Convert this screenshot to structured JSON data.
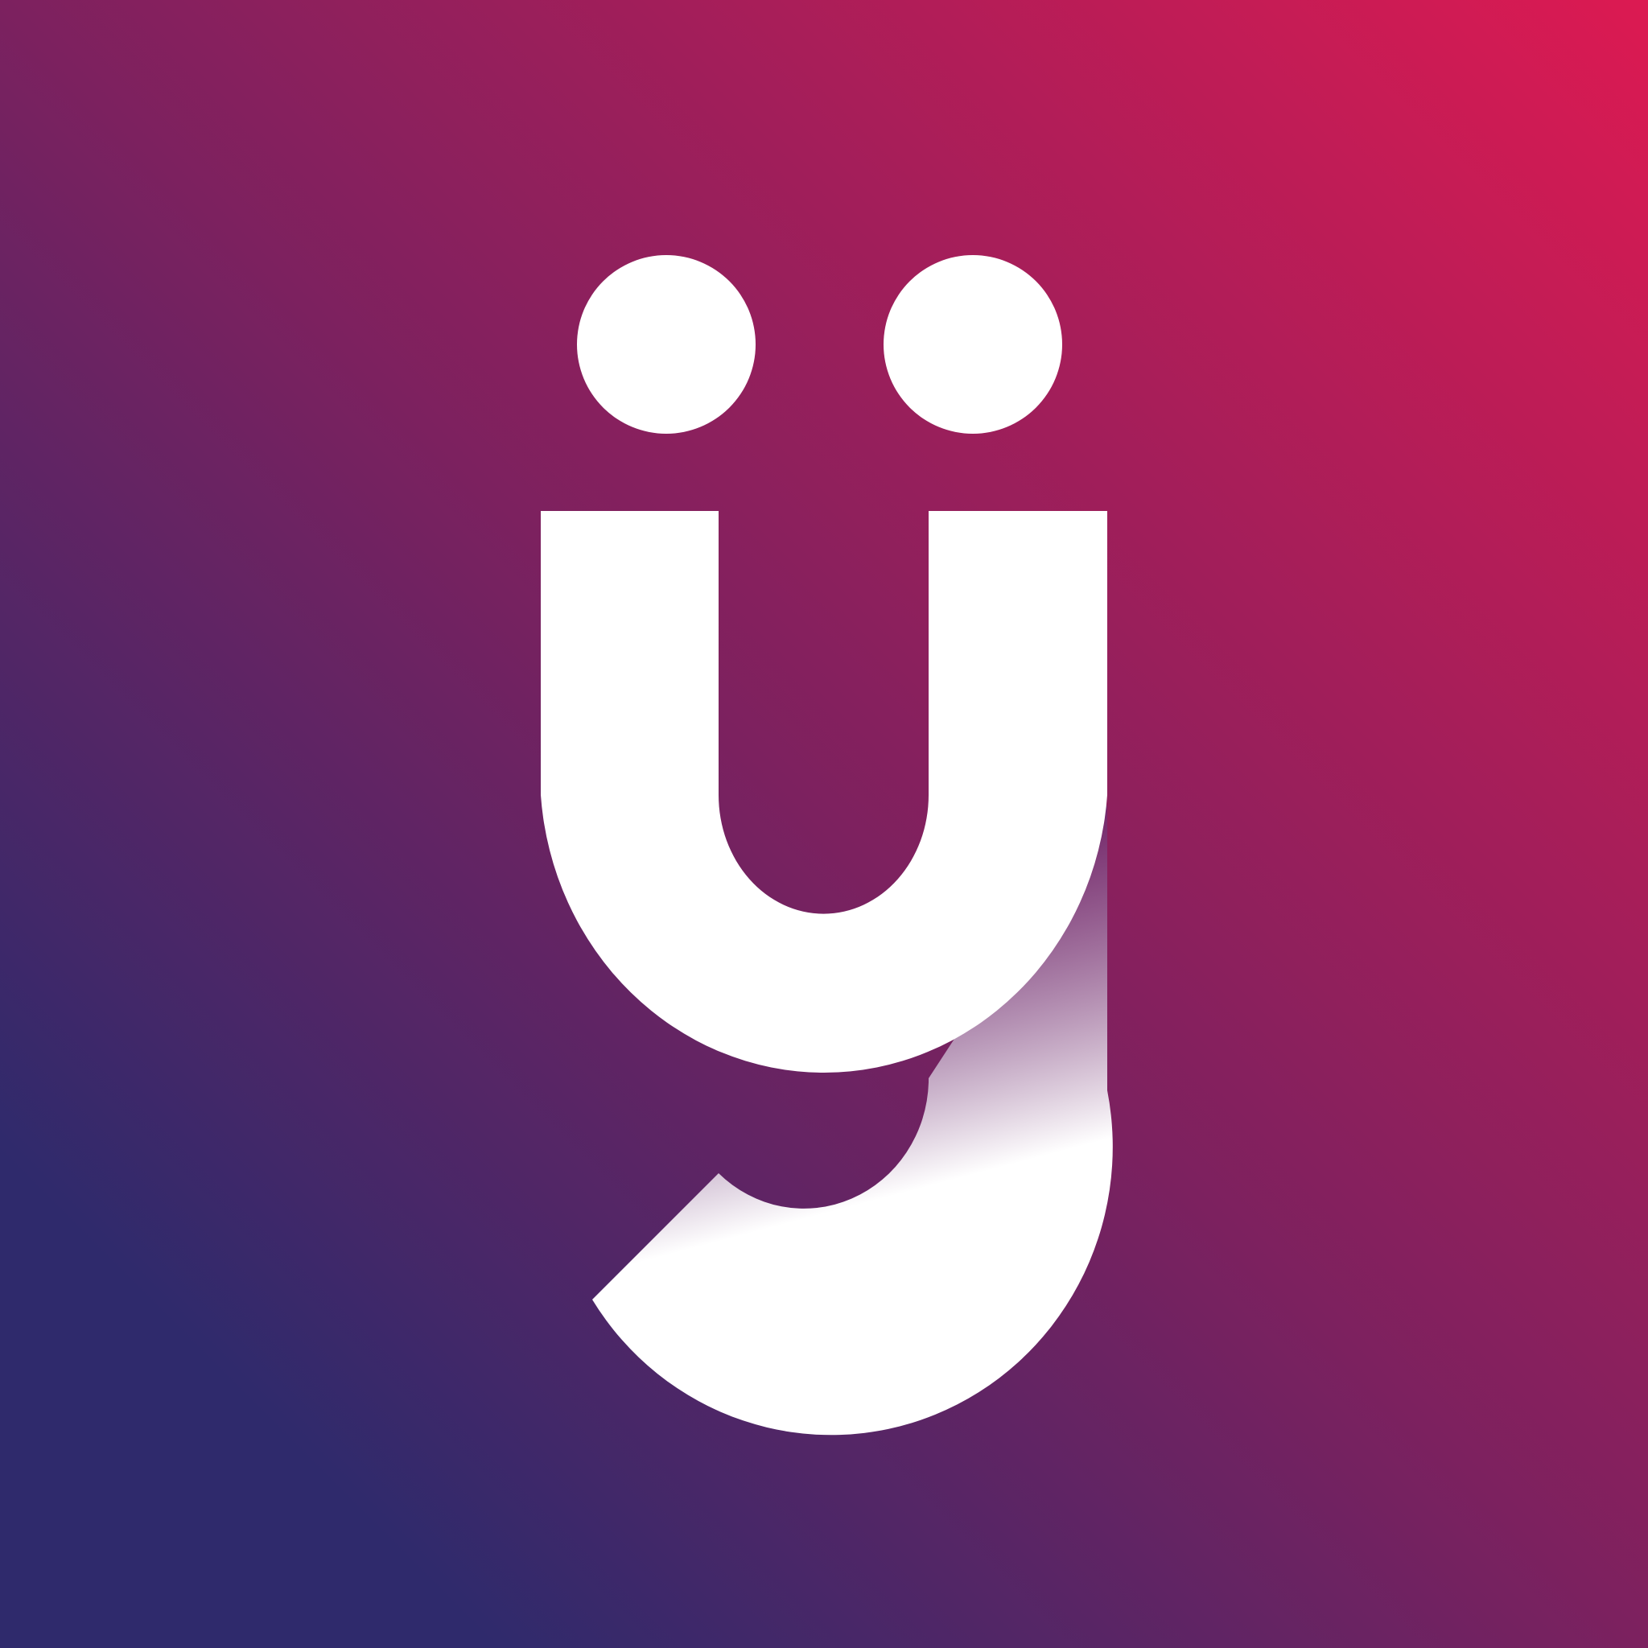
{
  "logo": {
    "glyph": "ÿ",
    "description_label": "app-logo",
    "colors": {
      "gradient_top_right": "#dc1a52",
      "gradient_mid": "#7c215f",
      "gradient_bottom_left": "#2f2a6c",
      "mark_fill": "#ffffff",
      "shadow_tint": "#6a2f73"
    },
    "icons": [
      "left-dot-icon",
      "right-dot-icon",
      "letter-u-icon",
      "letter-y-tail-icon"
    ]
  }
}
